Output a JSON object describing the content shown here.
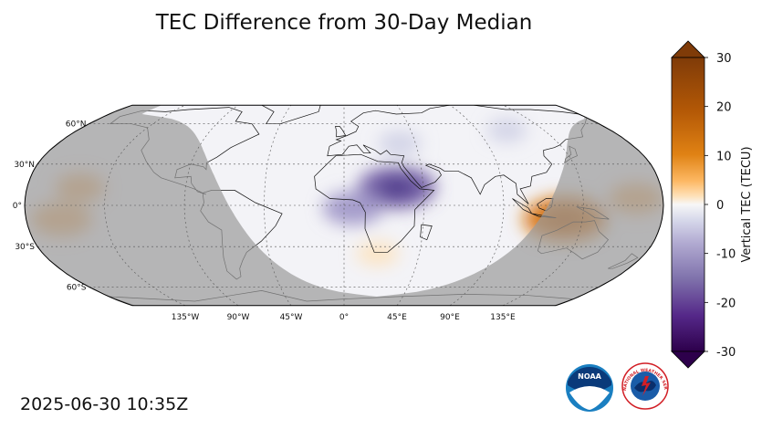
{
  "title": "TEC Difference from 30-Day Median",
  "timestamp": "2025-06-30 10:35Z",
  "map": {
    "projection": "Robinson",
    "lat_labels": [
      "60°N",
      "30°N",
      "0°",
      "30°S",
      "60°S"
    ],
    "lon_labels": [
      "135°W",
      "90°W",
      "45°W",
      "0°",
      "45°E",
      "90°E",
      "135°E"
    ],
    "night_shading_color": "#b3b3b3",
    "features": [
      {
        "name": "negative TEC anomaly over northeast Africa",
        "lon": 30,
        "lat": 13,
        "value": -18
      },
      {
        "name": "negative TEC anomaly over central Africa",
        "lon": 5,
        "lat": -2,
        "value": -12
      },
      {
        "name": "negative anomaly over eastern Europe",
        "lon": 35,
        "lat": 45,
        "value": -6
      },
      {
        "name": "positive TEC anomaly south of Indonesia",
        "lon": 125,
        "lat": -10,
        "value": 20
      },
      {
        "name": "positive anomaly east Pacific",
        "lon": -160,
        "lat": -10,
        "value": 12
      },
      {
        "name": "positive anomaly North Pacific",
        "lon": -150,
        "lat": 13,
        "value": 8
      },
      {
        "name": "positive anomaly western Pacific",
        "lon": 165,
        "lat": 5,
        "value": 10
      },
      {
        "name": "positive anomaly South Atlantic",
        "lon": 20,
        "lat": -35,
        "value": 6
      },
      {
        "name": "negative anomaly Siberia",
        "lon": 110,
        "lat": 55,
        "value": -5
      }
    ]
  },
  "colorbar": {
    "label": "Vertical TEC (TECU)",
    "min": -30,
    "max": 30,
    "ticks": [
      "30",
      "20",
      "10",
      "0",
      "-10",
      "-20",
      "-30"
    ],
    "colors": {
      "pos_max": "#7f3b08",
      "pos_mid": "#e08214",
      "pos_low": "#fee0b6",
      "zero": "#f7f7f7",
      "neg_low": "#d8daeb",
      "neg_mid": "#8073ac",
      "neg_max": "#2d004b"
    }
  },
  "logos": {
    "noaa_text": "NOAA",
    "nws_text": "NATIONAL WEATHER SERVICE"
  }
}
